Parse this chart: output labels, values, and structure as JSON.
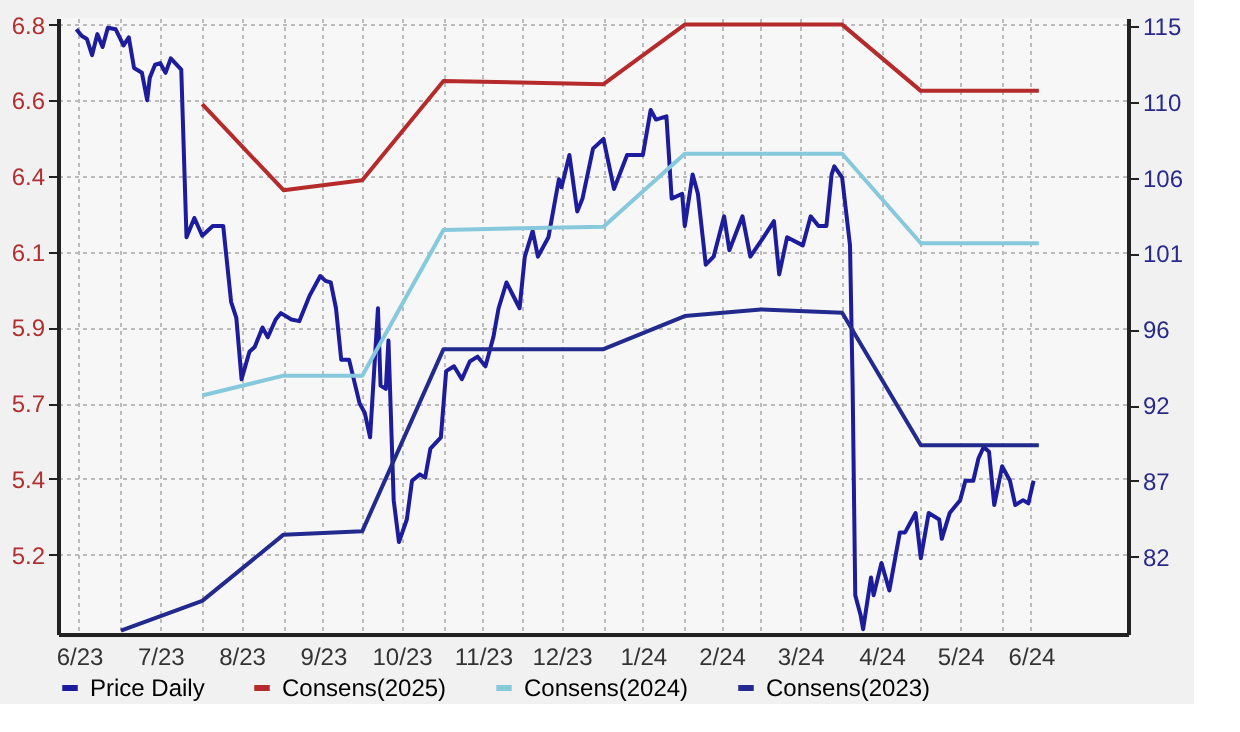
{
  "chart_data": {
    "type": "line",
    "xlim": [
      "2023-06-07",
      "2024-07-19"
    ],
    "xticks": [
      {
        "value": "2023-06-15",
        "label": "6/23"
      },
      {
        "value": "2023-07-01",
        "label": null
      },
      {
        "value": "2023-07-16",
        "label": "7/23"
      },
      {
        "value": "2023-08-01",
        "label": null
      },
      {
        "value": "2023-08-16",
        "label": "8/23"
      },
      {
        "value": "2023-09-01",
        "label": null
      },
      {
        "value": "2023-09-16",
        "label": "9/23"
      },
      {
        "value": "2023-10-01",
        "label": null
      },
      {
        "value": "2023-10-16",
        "label": "10/23"
      },
      {
        "value": "2023-11-01",
        "label": null
      },
      {
        "value": "2023-11-16",
        "label": "11/23"
      },
      {
        "value": "2023-12-01",
        "label": null
      },
      {
        "value": "2023-12-16",
        "label": "12/23"
      },
      {
        "value": "2024-01-01",
        "label": null
      },
      {
        "value": "2024-01-16",
        "label": "1/24"
      },
      {
        "value": "2024-02-01",
        "label": null
      },
      {
        "value": "2024-02-15",
        "label": "2/24"
      },
      {
        "value": "2024-03-01",
        "label": null
      },
      {
        "value": "2024-03-16",
        "label": "3/24"
      },
      {
        "value": "2024-04-01",
        "label": null
      },
      {
        "value": "2024-04-16",
        "label": "4/24"
      },
      {
        "value": "2024-05-01",
        "label": null
      },
      {
        "value": "2024-05-16",
        "label": "5/24"
      },
      {
        "value": "2024-06-01",
        "label": null
      },
      {
        "value": "2024-06-12",
        "label": "6/24"
      }
    ],
    "ylim": [
      4.97,
      6.83
    ],
    "yticks": [
      {
        "value": 6.81,
        "label": "6.8"
      },
      {
        "value": 6.581,
        "label": "6.6"
      },
      {
        "value": 6.353,
        "label": "6.4"
      },
      {
        "value": 6.124,
        "label": "6.1"
      },
      {
        "value": 5.896,
        "label": "5.9"
      },
      {
        "value": 5.667,
        "label": "5.7"
      },
      {
        "value": 5.439,
        "label": "5.4"
      },
      {
        "value": 5.21,
        "label": "5.2"
      }
    ],
    "y2lim": [
      77.3,
      115.5
    ],
    "y2ticks": [
      {
        "value": 115,
        "label": "115"
      },
      {
        "value": 110.3,
        "label": "110"
      },
      {
        "value": 105.6,
        "label": "106"
      },
      {
        "value": 100.9,
        "label": "101"
      },
      {
        "value": 96.2,
        "label": "96"
      },
      {
        "value": 91.5,
        "label": "92"
      },
      {
        "value": 86.8,
        "label": "87"
      },
      {
        "value": 82.1,
        "label": "82"
      }
    ],
    "grid": true,
    "legend": "bottom left",
    "series": [
      {
        "name": "Price Daily",
        "color": "#1c1c9c",
        "axis": "y2",
        "x": [
          "2023-06-14",
          "2023-06-16",
          "2023-06-18",
          "2023-06-20",
          "2023-06-22",
          "2023-06-24",
          "2023-06-26",
          "2023-06-29",
          "2023-07-02",
          "2023-07-04",
          "2023-07-06",
          "2023-07-09",
          "2023-07-11",
          "2023-07-12",
          "2023-07-14",
          "2023-07-16",
          "2023-07-18",
          "2023-07-20",
          "2023-07-24",
          "2023-07-26",
          "2023-07-29",
          "2023-08-01",
          "2023-08-05",
          "2023-08-09",
          "2023-08-12",
          "2023-08-14",
          "2023-08-16",
          "2023-08-19",
          "2023-08-21",
          "2023-08-24",
          "2023-08-26",
          "2023-08-29",
          "2023-08-31",
          "2023-09-04",
          "2023-09-07",
          "2023-09-11",
          "2023-09-15",
          "2023-09-17",
          "2023-09-19",
          "2023-09-21",
          "2023-09-23",
          "2023-09-26",
          "2023-09-30",
          "2023-10-02",
          "2023-10-04",
          "2023-10-07",
          "2023-10-08",
          "2023-10-10",
          "2023-10-11",
          "2023-10-13",
          "2023-10-15",
          "2023-10-18",
          "2023-10-20",
          "2023-10-23",
          "2023-10-25",
          "2023-10-27",
          "2023-10-31",
          "2023-11-02",
          "2023-11-05",
          "2023-11-08",
          "2023-11-11",
          "2023-11-14",
          "2023-11-17",
          "2023-11-20",
          "2023-11-22",
          "2023-11-25",
          "2023-11-30",
          "2023-12-02",
          "2023-12-05",
          "2023-12-07",
          "2023-12-11",
          "2023-12-15",
          "2023-12-16",
          "2023-12-19",
          "2023-12-22",
          "2023-12-24",
          "2023-12-28",
          "2024-01-01",
          "2024-01-05",
          "2024-01-10",
          "2024-01-16",
          "2024-01-19",
          "2024-01-21",
          "2024-01-25",
          "2024-01-27",
          "2024-01-31",
          "2024-02-01",
          "2024-02-04",
          "2024-02-06",
          "2024-02-09",
          "2024-02-12",
          "2024-02-16",
          "2024-02-18",
          "2024-02-23",
          "2024-02-26",
          "2024-03-02",
          "2024-03-06",
          "2024-03-08",
          "2024-03-11",
          "2024-03-17",
          "2024-03-20",
          "2024-03-23",
          "2024-03-26",
          "2024-03-28",
          "2024-03-29",
          "2024-04-01",
          "2024-04-04",
          "2024-04-05",
          "2024-04-06",
          "2024-04-08",
          "2024-04-09",
          "2024-04-12",
          "2024-04-13",
          "2024-04-16",
          "2024-04-19",
          "2024-04-23",
          "2024-04-25",
          "2024-04-29",
          "2024-05-01",
          "2024-05-04",
          "2024-05-08",
          "2024-05-09",
          "2024-05-12",
          "2024-05-16",
          "2024-05-18",
          "2024-05-21",
          "2024-05-23",
          "2024-05-25",
          "2024-05-27",
          "2024-05-29",
          "2024-06-01",
          "2024-06-04",
          "2024-06-06",
          "2024-06-09",
          "2024-06-11",
          "2024-06-13"
        ],
        "values": [
          114.8,
          114.4,
          114.2,
          113.2,
          114.5,
          113.7,
          114.9,
          114.8,
          113.8,
          114.3,
          112.4,
          112.1,
          110.4,
          111.8,
          112.6,
          112.7,
          112.1,
          113.0,
          112.3,
          101.9,
          103.1,
          102.0,
          102.6,
          102.6,
          97.9,
          96.9,
          93.1,
          94.8,
          95.1,
          96.3,
          95.7,
          96.8,
          97.2,
          96.8,
          96.7,
          98.3,
          99.5,
          99.2,
          99.1,
          97.5,
          94.3,
          94.3,
          91.6,
          91.0,
          89.5,
          97.5,
          92.7,
          92.5,
          95.5,
          85.6,
          83.0,
          84.4,
          86.8,
          87.2,
          87.0,
          88.8,
          89.5,
          93.6,
          93.9,
          93.1,
          94.2,
          94.5,
          93.9,
          95.7,
          97.5,
          99.1,
          97.5,
          100.7,
          102.3,
          100.7,
          101.9,
          105.5,
          105.0,
          107.0,
          103.5,
          104.3,
          107.4,
          108.0,
          104.9,
          107.0,
          107.0,
          109.8,
          109.2,
          109.4,
          104.3,
          104.6,
          102.6,
          105.8,
          104.6,
          100.2,
          100.7,
          103.2,
          101.1,
          103.2,
          100.7,
          101.9,
          102.9,
          99.6,
          101.9,
          101.4,
          103.2,
          102.6,
          102.6,
          105.8,
          106.3,
          105.6,
          101.4,
          92.7,
          79.7,
          78.5,
          77.6,
          80.8,
          79.7,
          81.7,
          80.0,
          83.6,
          83.6,
          84.8,
          82.0,
          84.8,
          84.4,
          83.2,
          84.8,
          85.6,
          86.8,
          86.8,
          88.2,
          88.9,
          88.6,
          85.3,
          87.7,
          86.8,
          85.3,
          85.6,
          85.4,
          86.8
        ]
      },
      {
        "name": "Consens(2025)",
        "color": "#b52a2a",
        "x": [
          "2023-08-01",
          "2023-09-01",
          "2023-10-01",
          "2023-11-01",
          "2024-01-01",
          "2024-02-01",
          "2024-04-01",
          "2024-05-01",
          "2024-06-15"
        ],
        "values": [
          6.57,
          6.31,
          6.34,
          6.64,
          6.63,
          6.81,
          6.81,
          6.61,
          6.61
        ]
      },
      {
        "name": "Consens(2024)",
        "color": "#86c9dc",
        "x": [
          "2023-08-01",
          "2023-09-01",
          "2023-10-01",
          "2023-11-01",
          "2024-01-01",
          "2024-02-01",
          "2024-04-01",
          "2024-05-01",
          "2024-06-15"
        ],
        "values": [
          5.69,
          5.75,
          5.75,
          6.19,
          6.2,
          6.42,
          6.42,
          6.15,
          6.15
        ]
      },
      {
        "name": "Consens(2023)",
        "color": "#232a8e",
        "x": [
          "2023-07-01",
          "2023-08-01",
          "2023-09-01",
          "2023-10-01",
          "2023-11-01",
          "2024-01-01",
          "2024-02-01",
          "2024-03-01",
          "2024-04-01",
          "2024-05-01",
          "2024-06-15"
        ],
        "values": [
          4.98,
          5.07,
          5.27,
          5.28,
          5.83,
          5.83,
          5.93,
          5.95,
          5.94,
          5.54,
          5.54
        ]
      }
    ]
  }
}
